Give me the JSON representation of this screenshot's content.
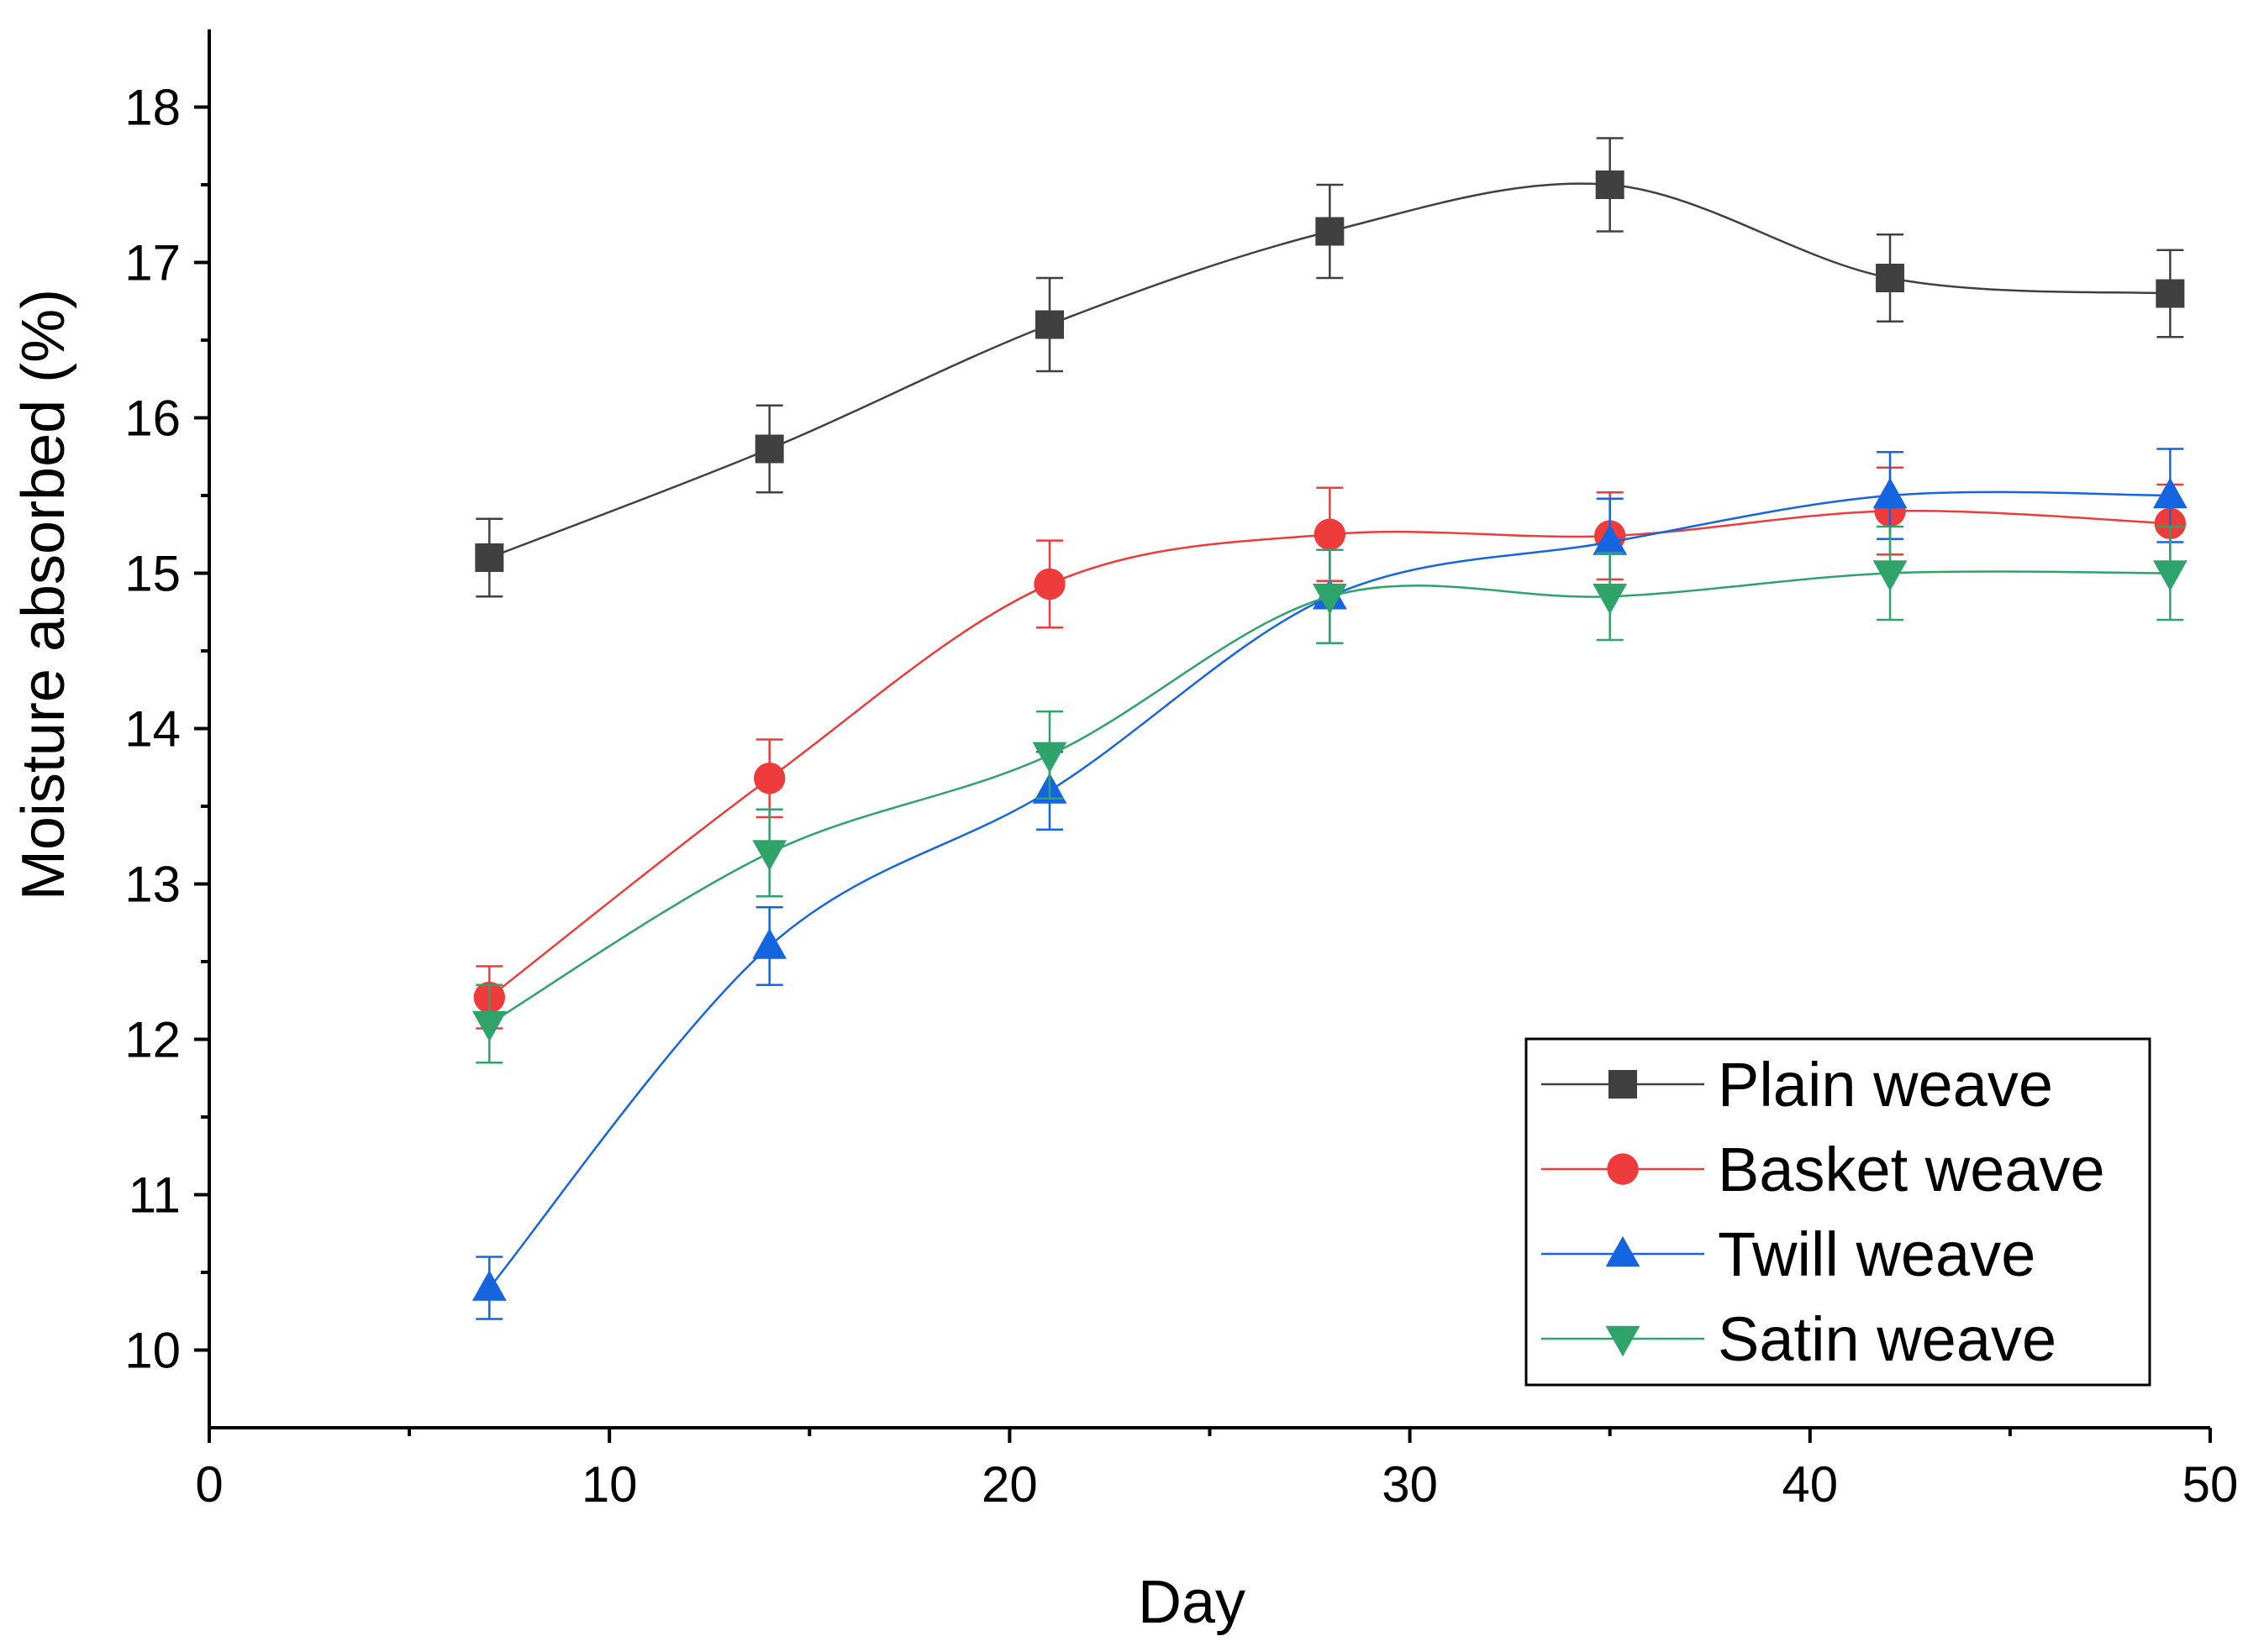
{
  "chart_data": {
    "type": "line",
    "xlabel": "Day",
    "ylabel": "Moisture absorbed (%)",
    "xlim": [
      0,
      50
    ],
    "ylim": [
      9.5,
      18.5
    ],
    "x_ticks": [
      0,
      10,
      20,
      30,
      40,
      50
    ],
    "y_ticks": [
      10,
      11,
      12,
      13,
      14,
      15,
      16,
      17,
      18
    ],
    "grid": false,
    "legend_position": "bottom-right",
    "x": [
      7,
      14,
      21,
      28,
      35,
      42,
      49
    ],
    "series": [
      {
        "name": "Plain weave",
        "color": "#404040",
        "marker": "square",
        "values": [
          15.1,
          15.8,
          16.6,
          17.2,
          17.5,
          16.9,
          16.8
        ],
        "errors": [
          0.25,
          0.28,
          0.3,
          0.3,
          0.3,
          0.28,
          0.28
        ]
      },
      {
        "name": "Basket weave",
        "color": "#ee3b3b",
        "marker": "circle",
        "values": [
          12.27,
          13.68,
          14.93,
          15.25,
          15.24,
          15.4,
          15.32
        ],
        "errors": [
          0.2,
          0.25,
          0.28,
          0.3,
          0.28,
          0.28,
          0.25
        ]
      },
      {
        "name": "Twill weave",
        "color": "#1565e0",
        "marker": "triangle-up",
        "values": [
          10.4,
          12.6,
          13.6,
          14.85,
          15.2,
          15.5,
          15.5
        ],
        "errors": [
          0.2,
          0.25,
          0.25,
          0.3,
          0.28,
          0.28,
          0.3
        ]
      },
      {
        "name": "Satin weave",
        "color": "#2ea36a",
        "marker": "triangle-down",
        "values": [
          12.1,
          13.2,
          13.83,
          14.85,
          14.85,
          15.0,
          15.0
        ],
        "errors": [
          0.25,
          0.28,
          0.28,
          0.3,
          0.28,
          0.3,
          0.3
        ]
      }
    ]
  }
}
